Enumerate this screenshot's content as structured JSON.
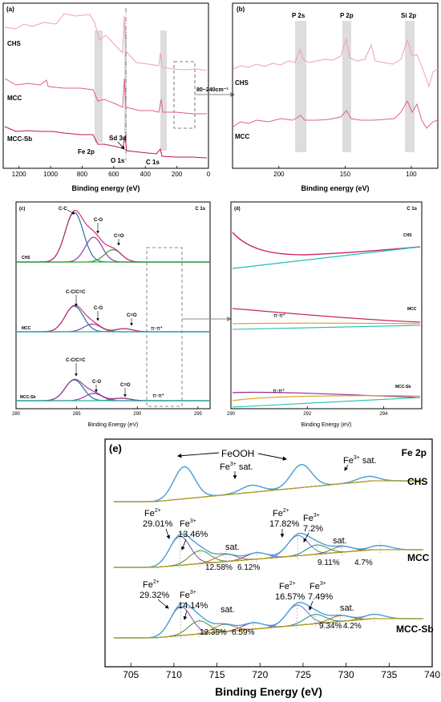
{
  "figure": {
    "panel_labels": [
      "(a)",
      "(b)",
      "(c)",
      "(d)",
      "(e)"
    ]
  },
  "chart_data": [
    {
      "panel": "(a)",
      "type": "line",
      "xlabel": "Binding energy (eV)",
      "ylabel": "",
      "xlim": [
        1300,
        0
      ],
      "xticks": [
        1200,
        1000,
        800,
        600,
        400,
        200,
        0
      ],
      "series": [
        {
          "name": "CHS",
          "color": "#f0a0b0"
        },
        {
          "name": "MCC",
          "color": "#e06080"
        },
        {
          "name": "MCC-Sb",
          "color": "#c0145a"
        }
      ],
      "peak_labels": [
        "Fe 2p",
        "Sd 3d",
        "O 1s",
        "C 1s"
      ],
      "highlight_bands": [
        720,
        530,
        285
      ],
      "zoom_box": [
        240,
        80
      ],
      "zoom_arrow_label": "80~240cm⁻¹"
    },
    {
      "panel": "(b)",
      "type": "line",
      "xlabel": "Binding energy (eV)",
      "ylabel": "",
      "xlim": [
        235,
        80
      ],
      "xticks": [
        200,
        150,
        100
      ],
      "series": [
        {
          "name": "CHS",
          "color": "#f0a0b0"
        },
        {
          "name": "MCC",
          "color": "#e06080"
        }
      ],
      "peak_labels": [
        "P 2s",
        "P 2p",
        "Si 2p"
      ],
      "highlight_bands": [
        191,
        152,
        102
      ]
    },
    {
      "panel": "(c)",
      "type": "line",
      "title": "C 1s",
      "xlabel": "Binding Energy (eV)",
      "ylabel": "",
      "xlim": [
        280,
        296
      ],
      "xticks": [
        280,
        285,
        290,
        295
      ],
      "series": [
        {
          "name": "CHS"
        },
        {
          "name": "MCC"
        },
        {
          "name": "MCC-Sb"
        }
      ],
      "components": {
        "CHS": [
          {
            "label": "C-C",
            "center": 284.8,
            "amp": 1.0,
            "color": "#2a6f9e"
          },
          {
            "label": "C-O",
            "center": 286.4,
            "amp": 0.5,
            "color": "#8a3fa8"
          },
          {
            "label": "C=O",
            "center": 288.0,
            "amp": 0.25,
            "color": "#2ca02c"
          }
        ],
        "MCC": [
          {
            "label": "C-C/C=C",
            "center": 284.8,
            "amp": 1.0,
            "color": "#2a6f9e"
          },
          {
            "label": "C-O",
            "center": 286.3,
            "amp": 0.3,
            "color": "#8a3fa8"
          },
          {
            "label": "C=O",
            "center": 288.9,
            "amp": 0.12,
            "color": "#2ca02c"
          }
        ],
        "MCC-Sb": [
          {
            "label": "C-C/C=C",
            "center": 284.8,
            "amp": 1.0,
            "color": "#2a6f9e"
          },
          {
            "label": "C-O",
            "center": 286.4,
            "amp": 0.35,
            "color": "#8a3fa8"
          },
          {
            "label": "C=O",
            "center": 288.7,
            "amp": 0.12,
            "color": "#2ca02c"
          }
        ]
      },
      "annotations": [
        "C-C",
        "C-O",
        "C=O",
        "C-C/C=C",
        "C-O",
        "C=O",
        "π-π*",
        "C-C/C=C",
        "C-O",
        "C=O",
        "π-π*"
      ],
      "zoom_box": [
        290,
        293
      ]
    },
    {
      "panel": "(d)",
      "type": "line",
      "title": "C 1s",
      "xlabel": "Binding Energy (eV)",
      "ylabel": "",
      "xlim": [
        290,
        295
      ],
      "xticks": [
        290,
        292,
        294
      ],
      "series": [
        {
          "name": "CHS"
        },
        {
          "name": "MCC"
        },
        {
          "name": "MCC-Sb"
        }
      ],
      "annotations": [
        "π-π*",
        "π-π*"
      ]
    },
    {
      "panel": "(e)",
      "type": "line",
      "title": "Fe 2p",
      "xlabel": "Binding Energy (eV)",
      "ylabel": "",
      "xlim": [
        702,
        740
      ],
      "xticks": [
        705,
        710,
        715,
        720,
        725,
        730,
        735,
        740
      ],
      "series": [
        {
          "name": "CHS"
        },
        {
          "name": "MCC"
        },
        {
          "name": "MCC-Sb"
        }
      ],
      "components": {
        "CHS": [
          {
            "label": "FeOOH",
            "center": 711.2,
            "amp": 1.0
          },
          {
            "label": "Fe3+ sat.",
            "center": 719.0,
            "amp": 0.22
          },
          {
            "label": "FeOOH",
            "center": 724.8,
            "amp": 0.72
          },
          {
            "label": "Fe3+ sat.",
            "center": 732.5,
            "amp": 0.15
          }
        ],
        "MCC": [
          {
            "label": "Fe2+",
            "percent": "29.01%",
            "center": 710.7,
            "amp": 1.0
          },
          {
            "label": "Fe3+",
            "percent": "13.46%",
            "center": 713.0,
            "amp": 0.45
          },
          {
            "label": "sat.",
            "percent": "12.58%",
            "center": 716.0,
            "amp": 0.25
          },
          {
            "label": "sat.",
            "percent": "6.12%",
            "center": 719.6,
            "amp": 0.22
          },
          {
            "label": "Fe2+",
            "percent": "17.82%",
            "center": 724.4,
            "amp": 0.7
          },
          {
            "label": "Fe3+",
            "percent": "7.2%",
            "center": 726.6,
            "amp": 0.32
          },
          {
            "label": "sat.",
            "percent": "9.11%",
            "center": 729.5,
            "amp": 0.2
          },
          {
            "label": "sat.",
            "percent": "4.7%",
            "center": 734.0,
            "amp": 0.15
          }
        ],
        "MCC-Sb": [
          {
            "label": "Fe2+",
            "percent": "29.32%",
            "center": 710.8,
            "amp": 1.0
          },
          {
            "label": "Fe3+",
            "percent": "14.14%",
            "center": 712.9,
            "amp": 0.45
          },
          {
            "label": "sat.",
            "percent": "12.35%",
            "center": 715.8,
            "amp": 0.25
          },
          {
            "label": "sat.",
            "percent": "6.59%",
            "center": 719.2,
            "amp": 0.22
          },
          {
            "label": "Fe2+",
            "percent": "16.57%",
            "center": 724.3,
            "amp": 0.7
          },
          {
            "label": "Fe3+",
            "percent": "7.49%",
            "center": 726.4,
            "amp": 0.32
          },
          {
            "label": "sat.",
            "percent": "9.34%",
            "center": 729.3,
            "amp": 0.2
          },
          {
            "label": "sat.",
            "percent": "4.2%",
            "center": 733.3,
            "amp": 0.15
          }
        ]
      }
    }
  ]
}
